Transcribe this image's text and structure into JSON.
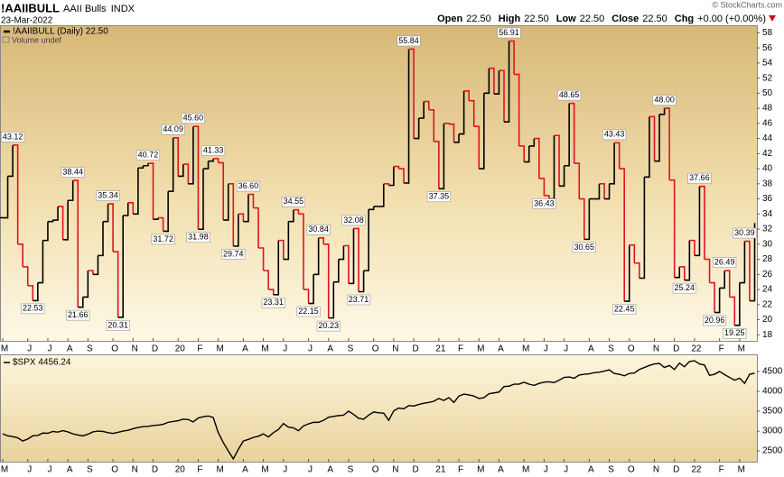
{
  "header": {
    "symbol": "!AAIIBULL",
    "name": "AAII Bulls",
    "exchange": "INDX",
    "date": "23-Mar-2022",
    "quote": [
      {
        "label": "Open",
        "value": "22.50"
      },
      {
        "label": "High",
        "value": "22.50"
      },
      {
        "label": "Low",
        "value": "22.50"
      },
      {
        "label": "Close",
        "value": "22.50"
      },
      {
        "label": "Chg",
        "value": "+0.00 (+0.00%)"
      }
    ],
    "credit": "© StockCharts.com"
  },
  "chart_data": [
    {
      "type": "line",
      "step": true,
      "title": "!AAIIBULL (Daily) 22.50",
      "subtitle": "Volume undef",
      "categories": [
        "M",
        null,
        null,
        null,
        null,
        "J",
        null,
        null,
        null,
        "J",
        null,
        null,
        null,
        "A",
        null,
        null,
        null,
        "S",
        null,
        null,
        null,
        null,
        "O",
        null,
        null,
        null,
        "N",
        null,
        null,
        null,
        "D",
        null,
        null,
        null,
        null,
        "20",
        null,
        null,
        null,
        "F",
        null,
        null,
        null,
        "M",
        null,
        null,
        null,
        null,
        "A",
        null,
        null,
        null,
        "M",
        null,
        null,
        null,
        "J",
        null,
        null,
        null,
        null,
        "J",
        null,
        null,
        null,
        "A",
        null,
        null,
        null,
        "S",
        null,
        null,
        null,
        null,
        "O",
        null,
        null,
        null,
        "N",
        null,
        null,
        null,
        "D",
        null,
        null,
        null,
        null,
        "21",
        null,
        null,
        null,
        "F",
        null,
        null,
        null,
        "M",
        null,
        null,
        null,
        "A",
        null,
        null,
        null,
        null,
        "M",
        null,
        null,
        null,
        "J",
        null,
        null,
        null,
        "J",
        null,
        null,
        null,
        null,
        "A",
        null,
        null,
        null,
        "S",
        null,
        null,
        null,
        "O",
        null,
        null,
        null,
        null,
        "N",
        null,
        null,
        null,
        "D",
        null,
        null,
        null,
        "22",
        null,
        null,
        null,
        null,
        "F",
        null,
        null,
        null,
        "M",
        null,
        null,
        null
      ],
      "series": [
        {
          "name": "!AAIIBULL",
          "color": "#000000",
          "down_color": "#e0141e",
          "values": [
            33.5,
            39.0,
            43.12,
            30.0,
            27.0,
            24.5,
            22.53,
            24.9,
            30.5,
            33.0,
            33.2,
            35.0,
            30.6,
            35.8,
            38.44,
            21.66,
            23.0,
            26.5,
            26.0,
            28.5,
            33.0,
            35.34,
            29.0,
            20.31,
            33.8,
            35.5,
            34.0,
            40.1,
            40.4,
            40.72,
            33.3,
            33.5,
            31.72,
            37.0,
            44.09,
            39.0,
            40.6,
            38.0,
            45.6,
            31.98,
            40.0,
            41.0,
            41.33,
            40.8,
            33.2,
            38.0,
            29.74,
            34.0,
            33.0,
            36.6,
            34.8,
            29.5,
            26.5,
            24.0,
            23.31,
            30.5,
            28.0,
            33.0,
            34.55,
            34.0,
            24.0,
            22.15,
            26.0,
            30.84,
            30.0,
            20.23,
            25.0,
            28.0,
            29.8,
            24.8,
            32.08,
            23.71,
            26.5,
            34.6,
            35.0,
            35.0,
            38.0,
            37.8,
            40.3,
            40.0,
            38.1,
            55.84,
            44.0,
            46.7,
            48.9,
            47.8,
            43.6,
            37.35,
            46.0,
            45.9,
            43.5,
            44.6,
            50.3,
            49.0,
            45.6,
            40.0,
            50.0,
            53.3,
            49.9,
            53.0,
            46.2,
            56.91,
            52.5,
            43.0,
            40.9,
            43.0,
            44.0,
            38.7,
            36.43,
            36.0,
            44.4,
            37.7,
            40.4,
            48.65,
            40.7,
            36.0,
            30.65,
            36.0,
            36.0,
            38.0,
            36.0,
            38.0,
            43.43,
            40.0,
            22.45,
            29.9,
            27.5,
            25.5,
            38.9,
            46.9,
            41.0,
            47.2,
            48.0,
            38.5,
            25.6,
            27.0,
            25.24,
            30.5,
            28.5,
            37.66,
            28.0,
            24.9,
            20.96,
            24.2,
            26.49,
            23.0,
            19.25,
            24.9,
            30.39,
            22.5,
            32.8
          ],
          "value_labels": [
            null,
            null,
            "43.12",
            null,
            null,
            null,
            "22.53",
            null,
            null,
            null,
            null,
            null,
            null,
            null,
            "38.44",
            "21.66",
            null,
            null,
            null,
            null,
            null,
            "35.34",
            null,
            "20.31",
            null,
            null,
            null,
            null,
            null,
            "40.72",
            null,
            null,
            "31.72",
            null,
            "44.09",
            null,
            null,
            null,
            "45.60",
            "31.98",
            null,
            null,
            "41.33",
            null,
            null,
            null,
            "29.74",
            null,
            null,
            "36.60",
            null,
            null,
            null,
            null,
            "23.31",
            null,
            null,
            null,
            "34.55",
            null,
            null,
            "22.15",
            null,
            "30.84",
            null,
            "20.23",
            null,
            null,
            null,
            null,
            "32.08",
            "23.71",
            null,
            null,
            null,
            null,
            null,
            null,
            null,
            null,
            null,
            "55.84",
            null,
            null,
            null,
            null,
            null,
            "37.35",
            null,
            null,
            null,
            null,
            null,
            null,
            null,
            null,
            null,
            null,
            null,
            null,
            null,
            "56.91",
            null,
            null,
            null,
            null,
            null,
            null,
            "36.43",
            null,
            null,
            null,
            null,
            "48.65",
            null,
            null,
            "30.65",
            null,
            null,
            null,
            null,
            null,
            "43.43",
            null,
            "22.45",
            null,
            null,
            null,
            null,
            null,
            null,
            null,
            "48.00",
            null,
            null,
            null,
            "25.24",
            null,
            null,
            "37.66",
            null,
            null,
            "20.96",
            null,
            "26.49",
            null,
            "19.25",
            null,
            "30.39",
            null,
            null
          ]
        }
      ],
      "ylim": [
        17.2,
        59
      ],
      "yticks": [
        18,
        20,
        22,
        24,
        26,
        28,
        30,
        32,
        34,
        36,
        38,
        40,
        42,
        44,
        46,
        48,
        50,
        52,
        54,
        56,
        58
      ]
    },
    {
      "type": "line",
      "step": false,
      "title": "$SPX 4456.24",
      "categories": [
        "M",
        null,
        null,
        null,
        null,
        "J",
        null,
        null,
        null,
        "J",
        null,
        null,
        null,
        "A",
        null,
        null,
        null,
        "S",
        null,
        null,
        null,
        null,
        "O",
        null,
        null,
        null,
        "N",
        null,
        null,
        null,
        "D",
        null,
        null,
        null,
        null,
        "20",
        null,
        null,
        null,
        "F",
        null,
        null,
        null,
        "M",
        null,
        null,
        null,
        null,
        "A",
        null,
        null,
        null,
        "M",
        null,
        null,
        null,
        "J",
        null,
        null,
        null,
        null,
        "J",
        null,
        null,
        null,
        "A",
        null,
        null,
        null,
        "S",
        null,
        null,
        null,
        null,
        "O",
        null,
        null,
        null,
        "N",
        null,
        null,
        null,
        "D",
        null,
        null,
        null,
        null,
        "21",
        null,
        null,
        null,
        "F",
        null,
        null,
        null,
        "M",
        null,
        null,
        null,
        "A",
        null,
        null,
        null,
        null,
        "M",
        null,
        null,
        null,
        "J",
        null,
        null,
        null,
        "J",
        null,
        null,
        null,
        null,
        "A",
        null,
        null,
        null,
        "S",
        null,
        null,
        null,
        "O",
        null,
        null,
        null,
        null,
        "N",
        null,
        null,
        null,
        "D",
        null,
        null,
        null,
        "22",
        null,
        null,
        null,
        null,
        "F",
        null,
        null,
        null,
        "M",
        null,
        null,
        null
      ],
      "series": [
        {
          "name": "$SPX",
          "color": "#000000",
          "values": [
            2930,
            2880,
            2860,
            2830,
            2750,
            2800,
            2880,
            2890,
            2950,
            2945,
            2990,
            2975,
            3010,
            2980,
            2930,
            2900,
            2880,
            2920,
            2980,
            3000,
            2990,
            2960,
            2940,
            2970,
            3000,
            3020,
            3060,
            3090,
            3110,
            3120,
            3140,
            3150,
            3170,
            3220,
            3240,
            3260,
            3300,
            3290,
            3230,
            3330,
            3360,
            3380,
            3340,
            2960,
            2710,
            2500,
            2300,
            2540,
            2750,
            2790,
            2840,
            2870,
            2930,
            2850,
            2960,
            3040,
            3190,
            3100,
            3080,
            3010,
            3130,
            3180,
            3220,
            3220,
            3270,
            3350,
            3370,
            3390,
            3400,
            3500,
            3420,
            3320,
            3300,
            3400,
            3480,
            3460,
            3450,
            3270,
            3510,
            3580,
            3560,
            3640,
            3630,
            3670,
            3700,
            3720,
            3750,
            3820,
            3770,
            3840,
            3720,
            3880,
            3930,
            3910,
            3880,
            3820,
            3840,
            3940,
            3960,
            3980,
            4120,
            4130,
            4180,
            4180,
            4230,
            4180,
            4150,
            4200,
            4230,
            4240,
            4220,
            4280,
            4350,
            4360,
            4330,
            4410,
            4430,
            4440,
            4470,
            4480,
            4510,
            4540,
            4450,
            4430,
            4390,
            4450,
            4460,
            4550,
            4600,
            4650,
            4690,
            4700,
            4600,
            4650,
            4550,
            4710,
            4620,
            4750,
            4770,
            4690,
            4660,
            4400,
            4430,
            4500,
            4420,
            4350,
            4280,
            4330,
            4200,
            4430,
            4456.24
          ]
        }
      ],
      "ylim": [
        2230,
        4930
      ],
      "yticks": [
        2500,
        3000,
        3500,
        4000,
        4500
      ]
    }
  ]
}
